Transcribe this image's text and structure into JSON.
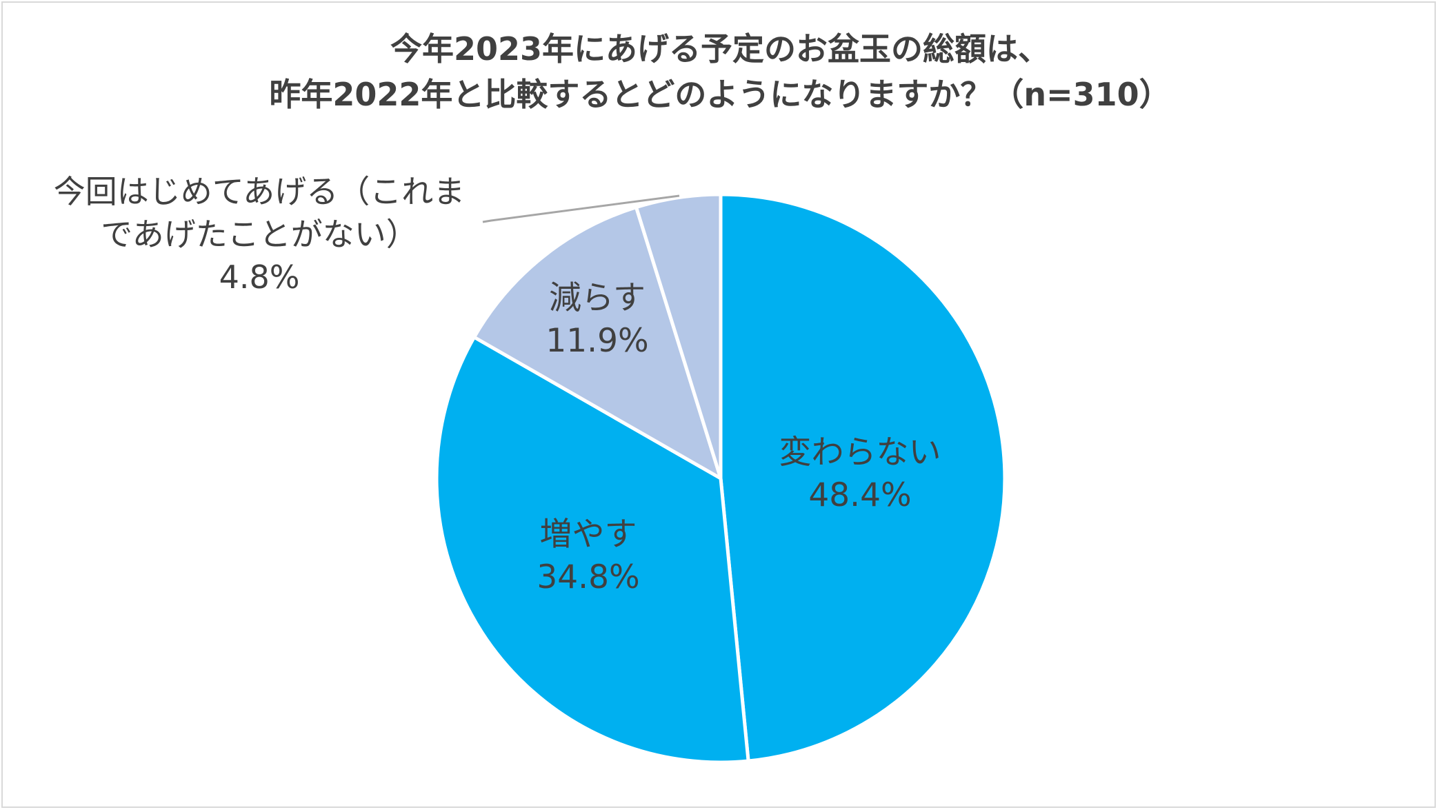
{
  "chart_data": {
    "type": "pie",
    "title_lines": [
      "今年2023年にあげる予定のお盆玉の総額は、",
      "昨年2022年と比較するとどのようになりますか？（n=310）"
    ],
    "slices": [
      {
        "label": "変わらない",
        "value": 48.4,
        "value_label": "48.4%",
        "color": "#00b0f0"
      },
      {
        "label": "増やす",
        "value": 34.8,
        "value_label": "34.8%",
        "color": "#00b0f0"
      },
      {
        "label": "減らす",
        "value": 11.9,
        "value_label": "11.9%",
        "color": "#b4c7e7"
      },
      {
        "label_lines": [
          "今回はじめてあげる（これま",
          "であげたことがない）"
        ],
        "value": 4.8,
        "value_label": "4.8%",
        "color": "#b4c7e7"
      }
    ],
    "start_angle": "12 o'clock",
    "direction": "clockwise",
    "legend": "none"
  }
}
